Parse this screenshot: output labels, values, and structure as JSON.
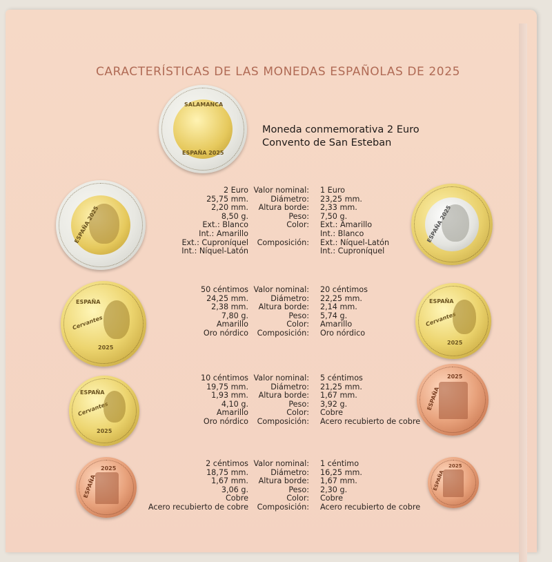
{
  "title": "CARACTERÍSTICAS DE LAS MONEDAS ESPAÑOLAS DE 2025",
  "commemorative": {
    "line1": "Moneda conmemorativa 2 Euro",
    "line2": "Convento de San Esteban",
    "coin_text_top": "SALAMANCA",
    "coin_text_bottom": "ESPAÑA 2025"
  },
  "coin_labels": {
    "espana": "ESPAÑA",
    "year": "2025",
    "espana_year": "ESPAÑA 2025",
    "cervantes": "Cervantes"
  },
  "blocks": [
    {
      "left": [
        "2 Euro",
        "25,75 mm.",
        "2,20 mm.",
        "8,50 g.",
        "Ext.: Blanco",
        "Int.: Amarillo",
        "Ext.: Cuproníquel",
        "Int.: Níquel-Latón"
      ],
      "labels": [
        "Valor nominal:",
        "Diámetro:",
        "Altura borde:",
        "Peso:",
        "Color:",
        "",
        "Composición:",
        ""
      ],
      "right": [
        "1 Euro",
        "23,25 mm.",
        "2,33 mm.",
        "7,50 g.",
        "Ext.: Amarillo",
        "Int.: Blanco",
        "Ext.: Níquel-Latón",
        "Int.: Cuproníquel"
      ]
    },
    {
      "left": [
        "50 céntimos",
        "24,25 mm.",
        "2,38 mm.",
        "7,80 g.",
        "Amarillo",
        "Oro nórdico"
      ],
      "labels": [
        "Valor nominal:",
        "Diámetro:",
        "Altura borde:",
        "Peso:",
        "Color:",
        "Composición:"
      ],
      "right": [
        "20 céntimos",
        "22,25 mm.",
        "2,14 mm.",
        "5,74 g.",
        "Amarillo",
        "Oro nórdico"
      ]
    },
    {
      "left": [
        "10 céntimos",
        "19,75 mm.",
        "1,93 mm.",
        "4,10 g.",
        "Amarillo",
        "Oro nórdico"
      ],
      "labels": [
        "Valor nominal:",
        "Diámetro:",
        "Altura borde:",
        "Peso:",
        "Color:",
        "Composición:"
      ],
      "right": [
        "5 céntimos",
        "21,25 mm.",
        "1,67 mm.",
        "3,92 g.",
        "Cobre",
        "Acero recubierto de cobre"
      ]
    },
    {
      "left": [
        "2 céntimos",
        "18,75 mm.",
        "1,67 mm.",
        "3,06 g.",
        "Cobre",
        "Acero recubierto de cobre"
      ],
      "labels": [
        "Valor nominal:",
        "Diámetro:",
        "Altura borde:",
        "Peso:",
        "Color:",
        "Composición:"
      ],
      "right": [
        "1 céntimo",
        "16,25 mm.",
        "1,67 mm.",
        "2,30 g.",
        "Cobre",
        "Acero recubierto de cobre"
      ]
    }
  ],
  "colors": {
    "title": "#b06a55",
    "page": "#f5d6c4",
    "gold": "#e6c95d",
    "copper": "#d88a62",
    "silver": "#e6e6e0"
  }
}
